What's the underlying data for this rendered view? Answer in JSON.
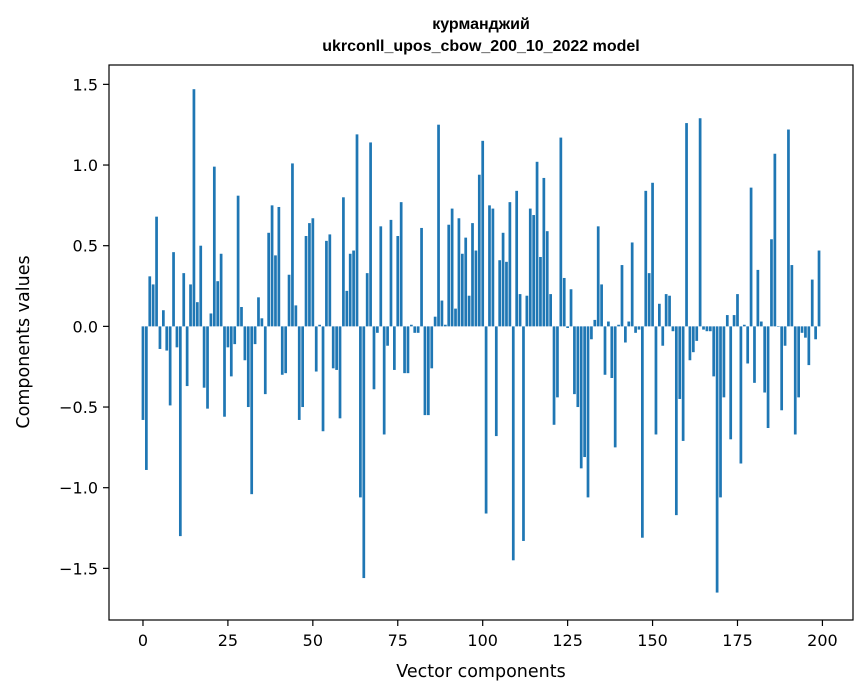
{
  "chart_data": {
    "type": "bar",
    "title_line1": "курманджий",
    "title_line2": "ukrconll_upos_cbow_200_10_2022 model",
    "xlabel": "Vector components",
    "ylabel": "Components values",
    "xlim": [
      -10,
      209
    ],
    "ylim": [
      -1.82,
      1.62
    ],
    "x_ticks": [
      0,
      25,
      50,
      75,
      100,
      125,
      150,
      175,
      200
    ],
    "x_tick_labels": [
      "0",
      "25",
      "50",
      "75",
      "100",
      "125",
      "150",
      "175",
      "200"
    ],
    "y_ticks": [
      -1.5,
      -1.0,
      -0.5,
      0.0,
      0.5,
      1.0,
      1.5
    ],
    "y_tick_labels": [
      "−1.5",
      "−1.0",
      "−0.5",
      "0.0",
      "0.5",
      "1.0",
      "1.5"
    ],
    "bar_color": "#1f77b4",
    "values": [
      -0.58,
      -0.89,
      0.31,
      0.26,
      0.68,
      -0.14,
      0.1,
      -0.15,
      -0.49,
      0.46,
      -0.13,
      -1.3,
      0.33,
      -0.37,
      0.26,
      1.47,
      0.15,
      0.5,
      -0.38,
      -0.51,
      0.08,
      0.99,
      0.28,
      0.45,
      -0.56,
      -0.13,
      -0.31,
      -0.11,
      0.81,
      0.12,
      -0.21,
      -0.5,
      -1.04,
      -0.11,
      0.18,
      0.05,
      -0.42,
      0.58,
      0.75,
      0.44,
      0.74,
      -0.3,
      -0.29,
      0.32,
      1.01,
      0.13,
      -0.58,
      -0.5,
      0.56,
      0.64,
      0.67,
      -0.28,
      0.01,
      -0.65,
      0.53,
      0.57,
      -0.26,
      -0.27,
      -0.57,
      0.8,
      0.22,
      0.45,
      0.47,
      1.19,
      -1.06,
      -1.56,
      0.33,
      1.14,
      -0.39,
      -0.04,
      0.62,
      -0.67,
      -0.12,
      0.66,
      -0.27,
      0.56,
      0.77,
      -0.29,
      -0.29,
      0.01,
      -0.04,
      -0.04,
      0.61,
      -0.55,
      -0.55,
      -0.26,
      0.06,
      1.25,
      0.16,
      0.01,
      0.63,
      0.73,
      0.11,
      0.67,
      0.45,
      0.55,
      0.19,
      0.64,
      0.47,
      0.94,
      1.15,
      -1.16,
      0.75,
      0.73,
      -0.68,
      0.41,
      0.58,
      0.4,
      0.77,
      -1.45,
      0.84,
      0.2,
      -1.33,
      0.19,
      0.73,
      0.69,
      1.02,
      0.43,
      0.92,
      0.59,
      0.2,
      -0.61,
      -0.44,
      1.17,
      0.3,
      -0.01,
      0.23,
      -0.42,
      -0.5,
      -0.88,
      -0.81,
      -1.06,
      -0.08,
      0.04,
      0.62,
      0.26,
      -0.3,
      0.03,
      -0.32,
      -0.75,
      0.01,
      0.38,
      -0.1,
      0.03,
      0.52,
      -0.04,
      -0.02,
      -1.31,
      0.84,
      0.33,
      0.89,
      -0.67,
      0.14,
      -0.12,
      0.2,
      0.19,
      -0.03,
      -1.17,
      -0.45,
      -0.71,
      1.26,
      -0.21,
      -0.16,
      -0.09,
      1.29,
      -0.02,
      -0.03,
      -0.03,
      -0.31,
      -1.65,
      -1.06,
      -0.44,
      0.07,
      -0.7,
      0.07,
      0.2,
      -0.85,
      0.01,
      -0.23,
      0.86,
      -0.35,
      0.35,
      0.03,
      -0.41,
      -0.63,
      0.54,
      1.07,
      0.0,
      -0.52,
      -0.12,
      1.22,
      0.38,
      -0.67,
      -0.44,
      -0.04,
      -0.07,
      -0.24,
      0.29,
      -0.08,
      0.47
    ]
  }
}
